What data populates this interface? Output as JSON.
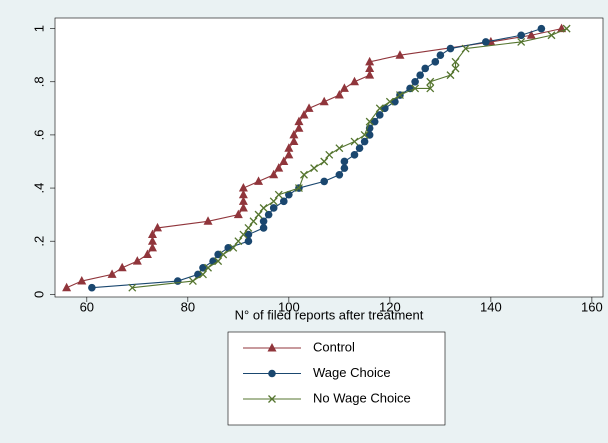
{
  "chart_data": {
    "type": "line",
    "xlabel": "N° of filed reports after treatment",
    "xlim": [
      53.7,
      162.2
    ],
    "xticks": [
      60,
      80,
      100,
      120,
      140,
      160
    ],
    "ylim": [
      -0.01,
      1.04
    ],
    "yticks": [
      0,
      {
        "value": 0.2,
        "label": ".2"
      },
      {
        "value": 0.4,
        "label": ".4"
      },
      {
        "value": 0.6,
        "label": ".6"
      },
      {
        "value": 0.8,
        "label": ".8"
      },
      1
    ],
    "legend": "bottom",
    "series": [
      {
        "name": "Control",
        "color": "#90353b",
        "marker": "triangle",
        "x": [
          56,
          59,
          65,
          67,
          70,
          72,
          73,
          73,
          73,
          74,
          84,
          90,
          91,
          91,
          91,
          91,
          94,
          97,
          98,
          99,
          100,
          100,
          101,
          101,
          102,
          102,
          103,
          104,
          107,
          110,
          111,
          113,
          116,
          116,
          116,
          122,
          140,
          148,
          154
        ],
        "values": [
          0.025,
          0.05,
          0.075,
          0.1,
          0.125,
          0.15,
          0.175,
          0.2,
          0.225,
          0.25,
          0.275,
          0.3,
          0.325,
          0.35,
          0.375,
          0.4,
          0.425,
          0.45,
          0.475,
          0.5,
          0.525,
          0.55,
          0.575,
          0.6,
          0.625,
          0.65,
          0.675,
          0.7,
          0.725,
          0.75,
          0.775,
          0.8,
          0.825,
          0.85,
          0.875,
          0.9,
          0.95,
          0.975,
          1.0
        ]
      },
      {
        "name": "Wage Choice",
        "color": "#1a476f",
        "marker": "circle",
        "x": [
          61,
          78,
          82,
          83,
          85,
          86,
          88,
          92,
          92,
          95,
          95,
          96,
          97,
          99,
          100,
          102,
          107,
          110,
          111,
          111,
          113,
          114,
          115,
          116,
          116,
          117,
          118,
          119,
          121,
          122,
          124,
          125,
          126,
          127,
          129,
          130,
          132,
          139,
          146,
          150
        ],
        "values": [
          0.025,
          0.05,
          0.075,
          0.1,
          0.125,
          0.15,
          0.175,
          0.2,
          0.225,
          0.25,
          0.275,
          0.3,
          0.325,
          0.35,
          0.375,
          0.4,
          0.425,
          0.45,
          0.475,
          0.5,
          0.525,
          0.55,
          0.575,
          0.6,
          0.625,
          0.65,
          0.675,
          0.7,
          0.725,
          0.75,
          0.775,
          0.8,
          0.825,
          0.85,
          0.875,
          0.9,
          0.925,
          0.95,
          0.975,
          1.0
        ]
      },
      {
        "name": "No Wage Choice",
        "color": "#55752f",
        "marker": "x",
        "x": [
          69,
          81,
          83,
          84,
          86,
          87,
          89,
          90,
          91,
          92,
          93,
          94,
          95,
          97,
          98,
          102,
          103,
          105,
          107,
          108,
          110,
          113,
          115,
          116,
          118,
          120,
          122,
          125,
          128,
          128,
          132,
          133,
          133,
          135,
          146,
          152,
          155
        ],
        "values": [
          0.025,
          0.05,
          0.075,
          0.1,
          0.125,
          0.15,
          0.175,
          0.2,
          0.225,
          0.25,
          0.275,
          0.3,
          0.325,
          0.35,
          0.375,
          0.4,
          0.45,
          0.475,
          0.5,
          0.525,
          0.55,
          0.575,
          0.6,
          0.65,
          0.7,
          0.725,
          0.75,
          0.775,
          0.775,
          0.8,
          0.825,
          0.85,
          0.875,
          0.925,
          0.95,
          0.975,
          1.0
        ]
      }
    ]
  }
}
